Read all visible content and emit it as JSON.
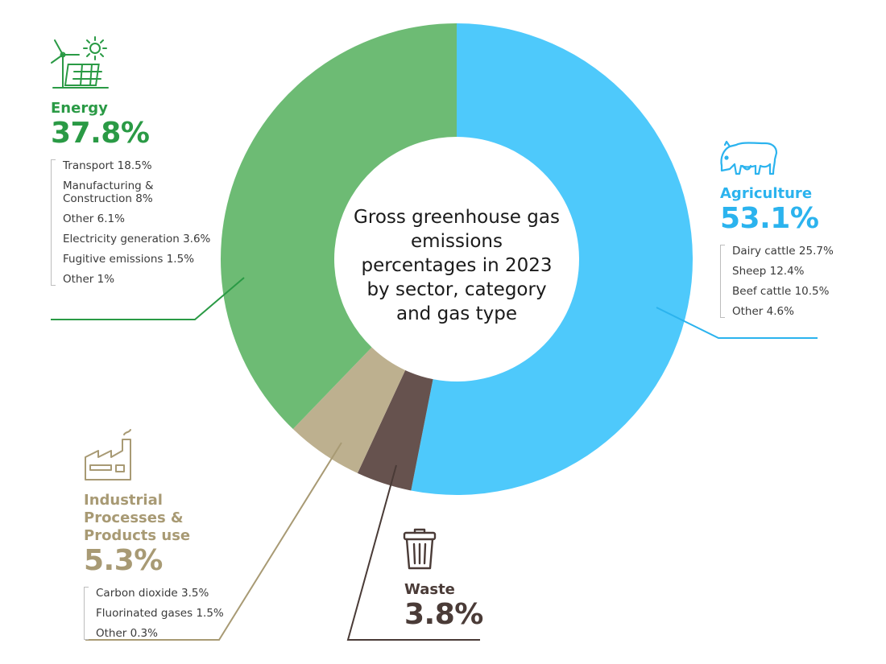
{
  "chart_data": {
    "type": "pie",
    "style": "donut",
    "title": "Gross greenhouse gas emissions percentages in 2023 by sector, category and gas type",
    "unit": "%",
    "slices": [
      {
        "name": "Agriculture",
        "value": 53.1,
        "value_label": "53.1%",
        "color": "#4ec9fb",
        "icon": "cow-icon",
        "breakdown": [
          {
            "label": "Dairy cattle",
            "value": "25.7%"
          },
          {
            "label": "Sheep",
            "value": "12.4%"
          },
          {
            "label": "Beef cattle",
            "value": "10.5%"
          },
          {
            "label": "Other",
            "value": "4.6%"
          }
        ]
      },
      {
        "name": "Waste",
        "value": 3.8,
        "value_label": "3.8%",
        "color": "#66524e",
        "icon": "trash-can-icon",
        "breakdown": []
      },
      {
        "name": "Industrial Processes & Products use",
        "value": 5.3,
        "value_label": "5.3%",
        "color": "#bdb08f",
        "icon": "factory-icon",
        "breakdown": [
          {
            "label": "Carbon dioxide",
            "value": "3.5%"
          },
          {
            "label": "Fluorinated gases",
            "value": "1.5%"
          },
          {
            "label": "Other",
            "value": "0.3%"
          }
        ]
      },
      {
        "name": "Energy",
        "value": 37.8,
        "value_label": "37.8%",
        "color": "#6dbb74",
        "icon": "wind-solar-icon",
        "breakdown": [
          {
            "label": "Transport",
            "value": "18.5%"
          },
          {
            "label": "Manufacturing &\nConstruction",
            "value": "8%"
          },
          {
            "label": "Other",
            "value": "6.1%"
          },
          {
            "label": "Electricity generation",
            "value": "3.6%"
          },
          {
            "label": "Fugitive emissions",
            "value": "1.5%"
          },
          {
            "label": "Other",
            "value": "1%"
          }
        ]
      }
    ],
    "label_colors": {
      "Agriculture": "#2bb3ee",
      "Waste": "#4a3b37",
      "Industrial Processes & Products use": "#a89a74",
      "Energy": "#2a9a45"
    }
  }
}
